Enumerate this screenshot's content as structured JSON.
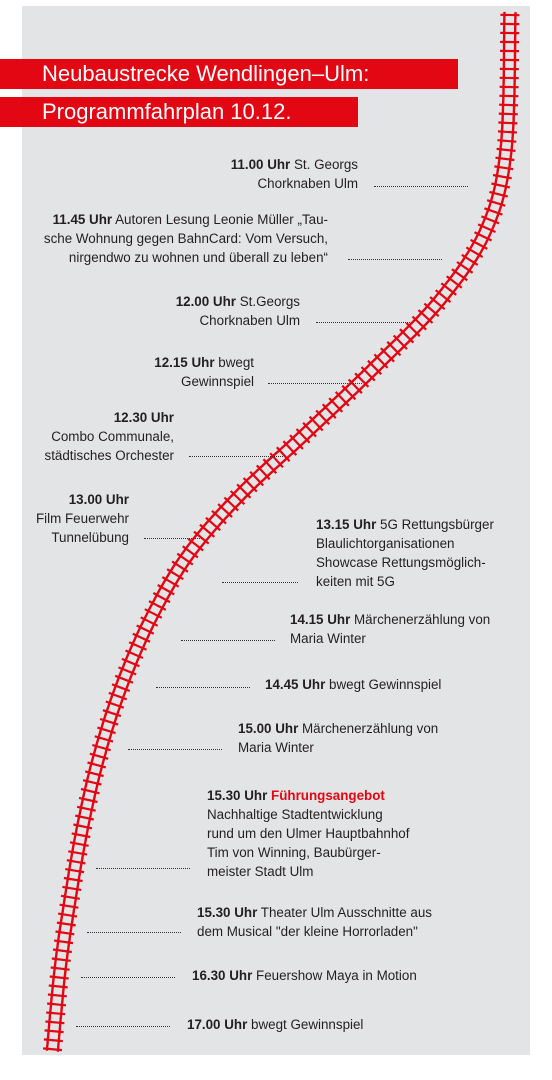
{
  "header": {
    "line1": "Neubaustrecke Wendlingen–Ulm:",
    "line2": "Programmfahrplan 10.12."
  },
  "colors": {
    "accent": "#e30613",
    "panel": "#e3e4e6",
    "text": "#231f20"
  },
  "events": [
    {
      "time": "11.00 Uhr",
      "text": " St. Georgs\nChorknaben Ulm"
    },
    {
      "time": "11.45 Uhr",
      "text": " Autoren Lesung Leonie Müller „Tau-\nsche Wohnung gegen BahnCard: Vom Versuch,\nnirgendwo zu wohnen und überall zu leben“"
    },
    {
      "time": "12.00 Uhr",
      "text": " St.Georgs\nChorknaben Ulm"
    },
    {
      "time": "12.15 Uhr",
      "text": " bwegt\nGewinnspiel"
    },
    {
      "time": "12.30 Uhr",
      "text": "\nCombo Communale,\nstädtisches Orchester"
    },
    {
      "time": "13.00 Uhr",
      "text": "\nFilm Feuerwehr\nTunnelübung"
    },
    {
      "time": "13.15 Uhr",
      "text": " 5G Rettungsbürger\nBlaulichtorganisationen\nShowcase Rettungsmöglich-\nkeiten mit 5G"
    },
    {
      "time": "14.15 Uhr",
      "text": " Märchenerzählung von\nMaria Winter"
    },
    {
      "time": "14.45 Uhr",
      "text": " bwegt Gewinnspiel"
    },
    {
      "time": "15.00 Uhr",
      "text": " Märchenerzählung von\nMaria Winter"
    },
    {
      "time": "15.30 Uhr",
      "highlight": "Führungsangebot",
      "text": "\nNachhaltige Stadtentwicklung\nrund um den Ulmer Hauptbahnhof\nTim von Winning, Baubürger-\nmeister Stadt Ulm"
    },
    {
      "time": "15.30 Uhr",
      "text": " Theater Ulm Ausschnitte aus\ndem Musical \"der kleine Horrorladen\""
    },
    {
      "time": "16.30 Uhr",
      "text": " Feuershow Maya in Motion"
    },
    {
      "time": "17.00 Uhr",
      "text": " bwegt Gewinnspiel"
    }
  ]
}
